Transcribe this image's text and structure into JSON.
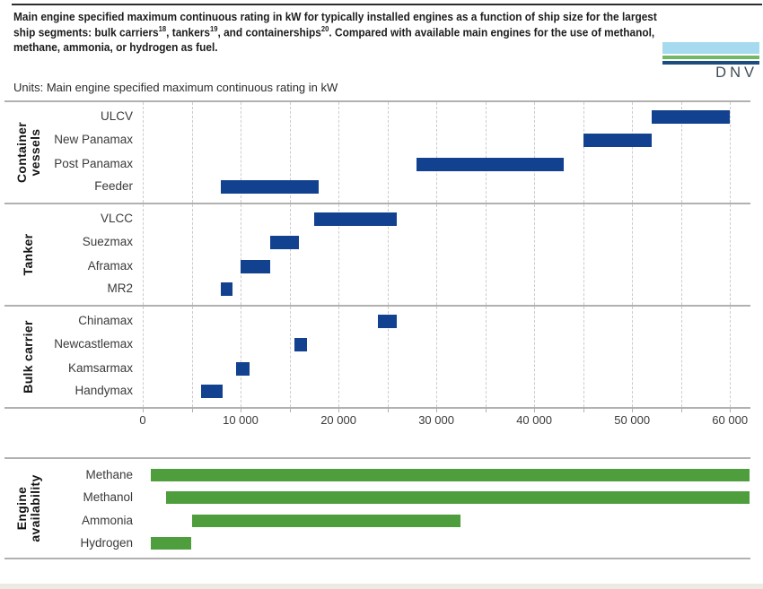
{
  "header": {
    "title_parts": [
      {
        "text": "Main engine specified maximum continuous rating in kW for typically installed engines as a function of ship size for the largest ship segments: bulk carriers"
      },
      {
        "sup": "18"
      },
      {
        "text": ", tankers"
      },
      {
        "sup": "19"
      },
      {
        "text": ", and containerships"
      },
      {
        "sup": "20"
      },
      {
        "text": ". Compared with available main engines for the use of methanol, methane, ammonia, or hydrogen as fuel."
      }
    ],
    "units_label": "Units: Main engine specified maximum continuous rating in kW",
    "logo": {
      "text": "DNV",
      "stripe_colors": [
        "#A6DAEE",
        "#72B865",
        "#1B4D80"
      ],
      "text_color": "#3D4A55"
    }
  },
  "chart_data": {
    "type": "bar",
    "subtype": "horizontal-range-bars",
    "unit": "kW",
    "title": "Main engine specified maximum continuous rating in kW",
    "grid": true,
    "x_axis": {
      "min": 0,
      "max": 62000,
      "label_step": 10000,
      "gridline_step": 5000,
      "tick_labels": [
        "0",
        "10 000",
        "20 000",
        "30 000",
        "40 000",
        "50 000",
        "60 000"
      ]
    },
    "bar_color": "#12418F",
    "groups": [
      {
        "name": "Container vessels",
        "name_lines": [
          "Container",
          "vessels"
        ],
        "rows": [
          {
            "label": "ULCV",
            "start": 52000,
            "end": 60000
          },
          {
            "label": "New Panamax",
            "start": 45000,
            "end": 52000
          },
          {
            "label": "Post Panamax",
            "start": 28000,
            "end": 43000
          },
          {
            "label": "Feeder",
            "start": 8000,
            "end": 18000
          }
        ]
      },
      {
        "name": "Tanker",
        "name_lines": [
          "Tanker"
        ],
        "rows": [
          {
            "label": "VLCC",
            "start": 17500,
            "end": 26000
          },
          {
            "label": "Suezmax",
            "start": 13000,
            "end": 16000
          },
          {
            "label": "Aframax",
            "start": 10000,
            "end": 13000
          },
          {
            "label": "MR2",
            "start": 8000,
            "end": 9200
          }
        ]
      },
      {
        "name": "Bulk carrier",
        "name_lines": [
          "Bulk carrier"
        ],
        "rows": [
          {
            "label": "Chinamax",
            "start": 24000,
            "end": 26000
          },
          {
            "label": "Newcastlemax",
            "start": 15500,
            "end": 16800
          },
          {
            "label": "Kamsarmax",
            "start": 9500,
            "end": 10900
          },
          {
            "label": "Handymax",
            "start": 6000,
            "end": 8200
          }
        ]
      }
    ],
    "availability": {
      "name": "Engine availability",
      "name_lines": [
        "Engine",
        "availability"
      ],
      "bar_color": "#4F9E3E",
      "rows": [
        {
          "label": "Methane",
          "start": 800,
          "end": 62000
        },
        {
          "label": "Methanol",
          "start": 2400,
          "end": 62000
        },
        {
          "label": "Ammonia",
          "start": 5000,
          "end": 32500
        },
        {
          "label": "Hydrogen",
          "start": 800,
          "end": 5000
        }
      ]
    }
  }
}
